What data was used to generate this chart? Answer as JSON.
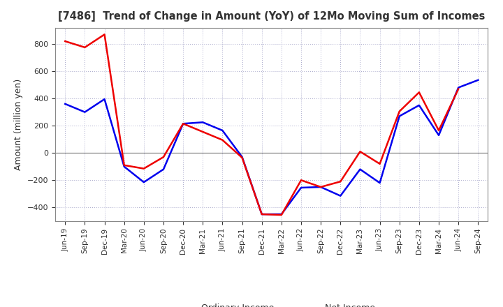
{
  "title": "[7486]  Trend of Change in Amount (YoY) of 12Mo Moving Sum of Incomes",
  "ylabel": "Amount (million yen)",
  "background_color": "#ffffff",
  "plot_bg_color": "#ffffff",
  "grid_color": "#aaaacc",
  "x_labels": [
    "Jun-19",
    "Sep-19",
    "Dec-19",
    "Mar-20",
    "Jun-20",
    "Sep-20",
    "Dec-20",
    "Mar-21",
    "Jun-21",
    "Sep-21",
    "Dec-21",
    "Mar-22",
    "Jun-22",
    "Sep-22",
    "Dec-22",
    "Mar-23",
    "Jun-23",
    "Sep-23",
    "Dec-23",
    "Mar-24",
    "Jun-24",
    "Sep-24"
  ],
  "ordinary_income": [
    360,
    300,
    395,
    -100,
    -215,
    -120,
    215,
    225,
    165,
    -30,
    -450,
    -450,
    -255,
    -250,
    -315,
    -120,
    -220,
    270,
    350,
    130,
    480,
    535
  ],
  "net_income": [
    820,
    775,
    870,
    -90,
    -115,
    -30,
    215,
    155,
    95,
    -35,
    -450,
    -455,
    -200,
    -250,
    -210,
    10,
    -80,
    305,
    445,
    165,
    470,
    null
  ],
  "ordinary_color": "#0000ee",
  "net_color": "#ee0000",
  "ylim": [
    -500,
    920
  ],
  "yticks": [
    -400,
    -200,
    0,
    200,
    400,
    600,
    800
  ],
  "line_width": 1.8,
  "title_color": "#333333",
  "tick_label_color": "#333333"
}
